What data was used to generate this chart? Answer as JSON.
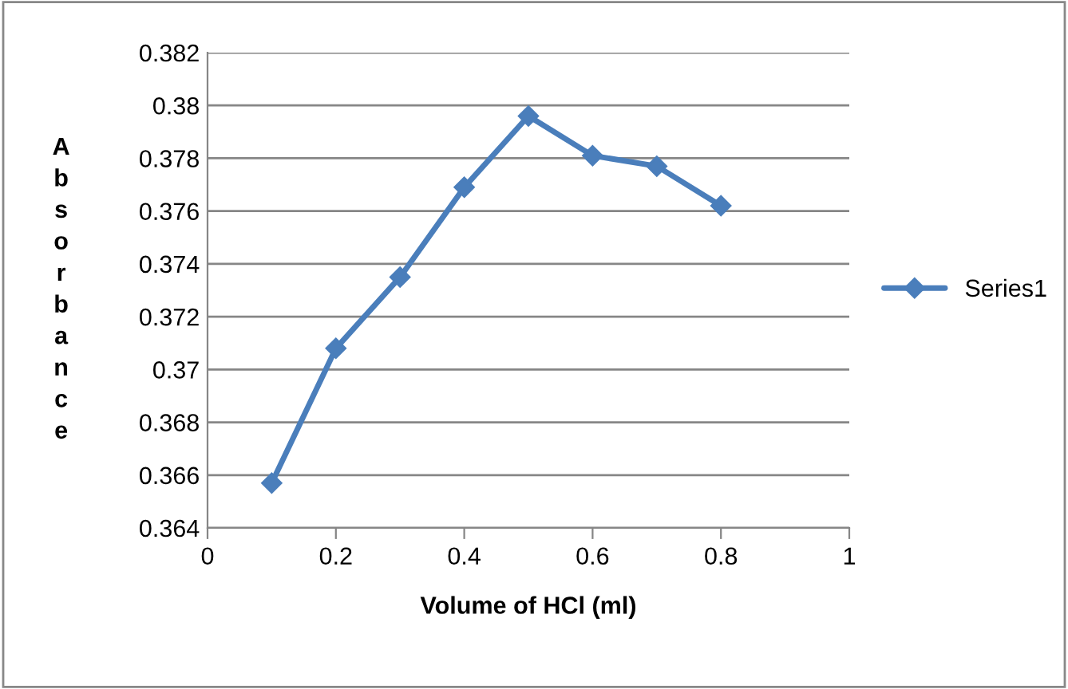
{
  "chart_data": {
    "type": "line",
    "xlabel": "Volume of HCl (ml)",
    "ylabel": "Absorbance",
    "x": [
      0.1,
      0.2,
      0.3,
      0.4,
      0.5,
      0.6,
      0.7,
      0.8
    ],
    "series": [
      {
        "name": "Series1",
        "color": "#4a7ebb",
        "values": [
          0.3657,
          0.3708,
          0.3735,
          0.3769,
          0.3796,
          0.3781,
          0.3777,
          0.3762
        ]
      }
    ],
    "xlim": [
      0,
      1
    ],
    "xticks": [
      0,
      0.2,
      0.4,
      0.6,
      0.8,
      1
    ],
    "ylim": [
      0.364,
      0.382
    ],
    "yticks": [
      0.364,
      0.366,
      0.368,
      0.37,
      0.372,
      0.374,
      0.376,
      0.378,
      0.38,
      0.382
    ],
    "grid": "y",
    "legend": "right",
    "marker": "diamond",
    "line_style": "solid"
  }
}
